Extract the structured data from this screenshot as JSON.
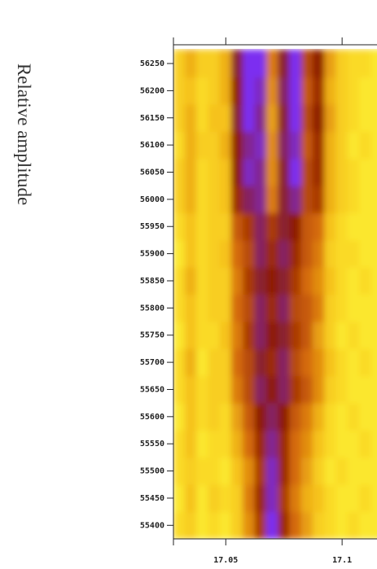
{
  "chart_data": {
    "type": "heatmap",
    "y_label": "Relative amplitude",
    "x": [
      17.03,
      17.035,
      17.04,
      17.045,
      17.05,
      17.055,
      17.06,
      17.065,
      17.07,
      17.075,
      17.08,
      17.085,
      17.09,
      17.095,
      17.1,
      17.105,
      17.11,
      17.115
    ],
    "y": [
      55400,
      55450,
      55500,
      55550,
      55600,
      55650,
      55700,
      55750,
      55800,
      55850,
      55900,
      55950,
      56000,
      56050,
      56100,
      56150,
      56200,
      56250
    ],
    "z": [
      [
        0.15,
        0.2,
        0.1,
        0.15,
        0.1,
        0.2,
        0.4,
        0.65,
        1.0,
        0.7,
        0.5,
        0.35,
        0.2,
        0.15,
        0.1,
        0.15,
        0.1,
        0.1
      ],
      [
        0.1,
        0.25,
        0.1,
        0.2,
        0.15,
        0.2,
        0.45,
        0.7,
        0.95,
        0.65,
        0.45,
        0.3,
        0.25,
        0.15,
        0.1,
        0.1,
        0.15,
        0.1
      ],
      [
        0.15,
        0.2,
        0.15,
        0.15,
        0.1,
        0.25,
        0.4,
        0.65,
        0.95,
        0.7,
        0.5,
        0.35,
        0.2,
        0.1,
        0.15,
        0.1,
        0.1,
        0.1
      ],
      [
        0.15,
        0.25,
        0.1,
        0.15,
        0.15,
        0.3,
        0.5,
        0.7,
        0.9,
        0.7,
        0.5,
        0.4,
        0.25,
        0.15,
        0.1,
        0.1,
        0.15,
        0.1
      ],
      [
        0.1,
        0.25,
        0.15,
        0.2,
        0.15,
        0.35,
        0.55,
        0.75,
        0.85,
        0.75,
        0.55,
        0.45,
        0.3,
        0.15,
        0.1,
        0.15,
        0.1,
        0.1
      ],
      [
        0.15,
        0.25,
        0.15,
        0.2,
        0.2,
        0.45,
        0.6,
        0.85,
        0.75,
        0.85,
        0.65,
        0.55,
        0.4,
        0.2,
        0.15,
        0.1,
        0.1,
        0.1
      ],
      [
        0.15,
        0.3,
        0.1,
        0.2,
        0.2,
        0.5,
        0.6,
        0.8,
        0.7,
        0.85,
        0.6,
        0.5,
        0.4,
        0.25,
        0.15,
        0.1,
        0.15,
        0.1
      ],
      [
        0.1,
        0.25,
        0.15,
        0.15,
        0.25,
        0.45,
        0.65,
        0.85,
        0.75,
        0.8,
        0.65,
        0.55,
        0.35,
        0.2,
        0.1,
        0.15,
        0.1,
        0.1
      ],
      [
        0.15,
        0.25,
        0.15,
        0.2,
        0.2,
        0.5,
        0.6,
        0.85,
        0.7,
        0.85,
        0.6,
        0.55,
        0.45,
        0.2,
        0.15,
        0.1,
        0.1,
        0.1
      ],
      [
        0.15,
        0.3,
        0.15,
        0.2,
        0.2,
        0.45,
        0.65,
        0.8,
        0.75,
        0.8,
        0.65,
        0.5,
        0.4,
        0.25,
        0.15,
        0.1,
        0.15,
        0.1
      ],
      [
        0.1,
        0.25,
        0.15,
        0.2,
        0.25,
        0.5,
        0.6,
        0.85,
        0.7,
        0.85,
        0.7,
        0.55,
        0.45,
        0.2,
        0.15,
        0.15,
        0.1,
        0.1
      ],
      [
        0.15,
        0.25,
        0.15,
        0.2,
        0.2,
        0.55,
        0.65,
        0.85,
        0.65,
        0.8,
        0.75,
        0.55,
        0.5,
        0.25,
        0.15,
        0.1,
        0.1,
        0.1
      ],
      [
        0.2,
        0.3,
        0.15,
        0.2,
        0.25,
        0.7,
        0.85,
        0.9,
        0.45,
        0.8,
        0.9,
        0.6,
        0.65,
        0.3,
        0.2,
        0.15,
        0.1,
        0.1
      ],
      [
        0.2,
        0.3,
        0.15,
        0.2,
        0.25,
        0.75,
        0.95,
        0.9,
        0.4,
        0.8,
        1.0,
        0.6,
        0.7,
        0.3,
        0.2,
        0.15,
        0.1,
        0.1
      ],
      [
        0.15,
        0.3,
        0.2,
        0.2,
        0.3,
        0.75,
        0.9,
        0.95,
        0.4,
        0.85,
        0.95,
        0.55,
        0.7,
        0.3,
        0.2,
        0.1,
        0.15,
        0.1
      ],
      [
        0.2,
        0.3,
        0.15,
        0.25,
        0.25,
        0.8,
        1.0,
        0.9,
        0.35,
        0.8,
        1.0,
        0.6,
        0.75,
        0.35,
        0.2,
        0.15,
        0.1,
        0.1
      ],
      [
        0.2,
        0.25,
        0.15,
        0.2,
        0.3,
        0.75,
        1.0,
        0.95,
        0.4,
        0.85,
        1.0,
        0.55,
        0.7,
        0.3,
        0.2,
        0.15,
        0.1,
        0.1
      ],
      [
        0.2,
        0.3,
        0.2,
        0.2,
        0.3,
        0.8,
        1.0,
        1.0,
        0.45,
        0.8,
        1.0,
        0.6,
        0.75,
        0.35,
        0.2,
        0.15,
        0.15,
        0.1
      ]
    ],
    "colormap": [
      "#ffff3a",
      "#f6c21a",
      "#d46a0a",
      "#8e1c04",
      "#7b2ff0"
    ],
    "xlim": [
      17.0275,
      17.115
    ],
    "ylim": [
      55375,
      56277
    ],
    "xticks": [
      17.05,
      17.1
    ],
    "yticks": [
      55400,
      55450,
      55500,
      55550,
      55600,
      55650,
      55700,
      55750,
      55800,
      55850,
      55900,
      55950,
      56000,
      56050,
      56100,
      56150,
      56200,
      56250
    ]
  }
}
